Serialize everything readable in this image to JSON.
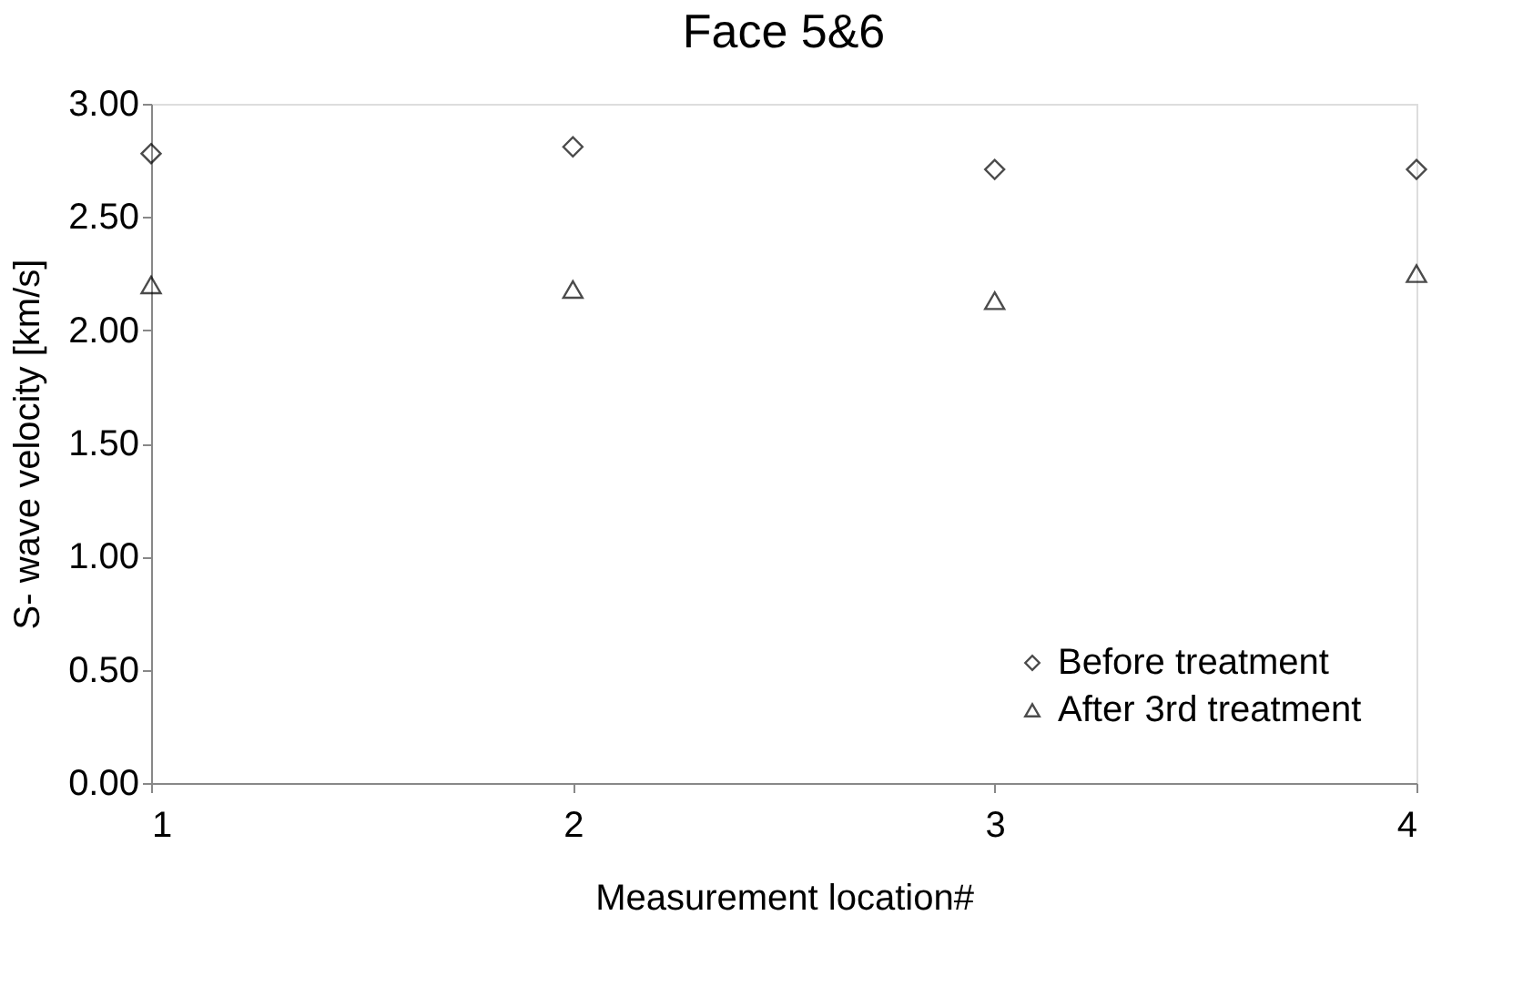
{
  "chart_data": {
    "type": "scatter",
    "title": "Face 5&6",
    "xlabel": "Measurement location#",
    "ylabel": "S- wave velocity [km/s]",
    "x": [
      1,
      2,
      3,
      4
    ],
    "series": [
      {
        "name": "Before treatment",
        "color": "#000000",
        "marker": "diamond",
        "values": [
          2.78,
          2.81,
          2.71,
          2.71
        ]
      },
      {
        "name": "After 3rd treatment",
        "color": "#000000",
        "marker": "triangle",
        "values": [
          2.2,
          2.18,
          2.13,
          2.25
        ]
      }
    ],
    "xlim": [
      1,
      4
    ],
    "xticks": [
      1,
      2,
      3,
      4
    ],
    "ylim": [
      0,
      3
    ],
    "yticks": [
      {
        "value": 0,
        "label": "0.00"
      },
      {
        "value": 0.5,
        "label": "0.50"
      },
      {
        "value": 1,
        "label": "1.00"
      },
      {
        "value": 1.5,
        "label": "1.50"
      },
      {
        "value": 2,
        "label": "2.00"
      },
      {
        "value": 2.5,
        "label": "2.50"
      },
      {
        "value": 3,
        "label": "3.00"
      }
    ],
    "grid": false,
    "legend": "bottom right"
  }
}
